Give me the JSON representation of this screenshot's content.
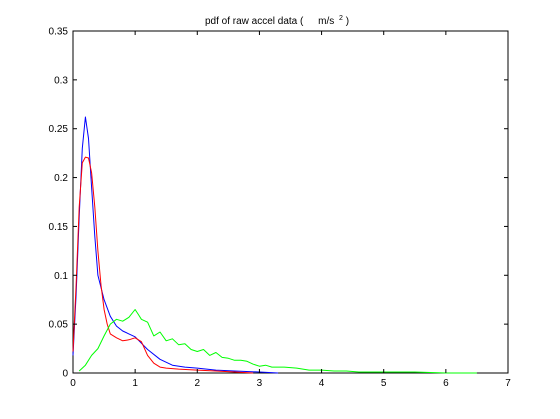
{
  "chart_data": {
    "type": "line",
    "title": {
      "main": "pdf of raw accel data (",
      "unit_base": "m/s",
      "unit_exp": "2",
      "close": ")"
    },
    "xlabel": "",
    "ylabel": "",
    "xlim": [
      0,
      7
    ],
    "ylim": [
      0,
      0.35
    ],
    "xticks": [
      "0",
      "1",
      "2",
      "3",
      "4",
      "5",
      "6",
      "7"
    ],
    "yticks": [
      "0",
      "0.05",
      "0.1",
      "0.15",
      "0.2",
      "0.25",
      "0.3",
      "0.35"
    ],
    "grid": false,
    "legend": "none",
    "series": [
      {
        "color": "#0000ff",
        "x": [
          0,
          0.05,
          0.1,
          0.15,
          0.2,
          0.25,
          0.3,
          0.35,
          0.4,
          0.5,
          0.6,
          0.7,
          0.8,
          0.9,
          1.0,
          1.2,
          1.4,
          1.6,
          1.8,
          2.0,
          2.3,
          2.6,
          3.0,
          3.3
        ],
        "y": [
          0.018,
          0.08,
          0.16,
          0.23,
          0.262,
          0.24,
          0.19,
          0.14,
          0.1,
          0.075,
          0.058,
          0.048,
          0.043,
          0.04,
          0.037,
          0.024,
          0.014,
          0.008,
          0.006,
          0.005,
          0.003,
          0.002,
          0.001,
          0
        ]
      },
      {
        "color": "#ff0000",
        "x": [
          0,
          0.05,
          0.1,
          0.15,
          0.2,
          0.25,
          0.3,
          0.35,
          0.4,
          0.45,
          0.5,
          0.55,
          0.6,
          0.7,
          0.8,
          0.9,
          1.0,
          1.1,
          1.2,
          1.3,
          1.4,
          1.5,
          1.7,
          2.0,
          2.3,
          2.6,
          2.9
        ],
        "y": [
          0.022,
          0.09,
          0.17,
          0.215,
          0.221,
          0.22,
          0.205,
          0.17,
          0.125,
          0.09,
          0.065,
          0.05,
          0.04,
          0.036,
          0.033,
          0.034,
          0.036,
          0.032,
          0.018,
          0.01,
          0.006,
          0.005,
          0.004,
          0.003,
          0.002,
          0.001,
          0
        ]
      },
      {
        "color": "#00ff00",
        "x": [
          0.1,
          0.2,
          0.3,
          0.4,
          0.5,
          0.6,
          0.7,
          0.8,
          0.9,
          1.0,
          1.05,
          1.1,
          1.2,
          1.3,
          1.4,
          1.5,
          1.6,
          1.7,
          1.8,
          1.9,
          2.0,
          2.1,
          2.2,
          2.3,
          2.4,
          2.5,
          2.6,
          2.7,
          2.8,
          2.9,
          3.0,
          3.1,
          3.2,
          3.4,
          3.6,
          3.8,
          4.0,
          4.2,
          4.4,
          4.6,
          5.0,
          5.5,
          6.0,
          6.5
        ],
        "y": [
          0.002,
          0.008,
          0.018,
          0.025,
          0.038,
          0.05,
          0.055,
          0.053,
          0.057,
          0.065,
          0.06,
          0.055,
          0.052,
          0.038,
          0.042,
          0.033,
          0.035,
          0.029,
          0.03,
          0.024,
          0.022,
          0.024,
          0.018,
          0.021,
          0.016,
          0.015,
          0.013,
          0.013,
          0.012,
          0.009,
          0.007,
          0.008,
          0.006,
          0.006,
          0.005,
          0.003,
          0.003,
          0.002,
          0.002,
          0.001,
          0.001,
          0.001,
          0,
          0
        ]
      }
    ]
  }
}
